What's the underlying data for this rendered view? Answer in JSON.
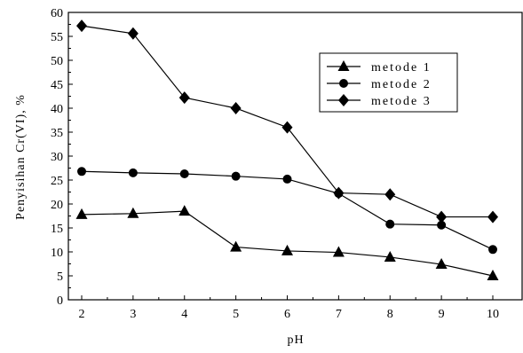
{
  "chart_data": {
    "type": "line",
    "title": "",
    "xlabel": "pH",
    "ylabel": "Penyisihan Cr(VI), %",
    "x": [
      2,
      3,
      4,
      5,
      6,
      7,
      8,
      9,
      10
    ],
    "xlim": [
      2,
      10
    ],
    "ylim": [
      0,
      60
    ],
    "xticks": [
      "2",
      "3",
      "4",
      "5",
      "6",
      "7",
      "8",
      "9",
      "10"
    ],
    "yticks": [
      "0",
      "5",
      "10",
      "15",
      "20",
      "25",
      "30",
      "35",
      "40",
      "45",
      "50",
      "55",
      "60"
    ],
    "grid": false,
    "legend_position": "top-right",
    "series": [
      {
        "name": "metode 1",
        "marker": "triangle",
        "values": [
          17.8,
          18.0,
          18.5,
          11.0,
          10.2,
          9.9,
          8.9,
          7.4,
          5.0
        ]
      },
      {
        "name": "metode 2",
        "marker": "circle",
        "values": [
          26.8,
          26.5,
          26.3,
          25.8,
          25.2,
          22.2,
          15.8,
          15.6,
          10.5
        ]
      },
      {
        "name": "metode 3",
        "marker": "diamond",
        "values": [
          57.2,
          55.6,
          42.2,
          40.0,
          36.0,
          22.3,
          22.0,
          17.3,
          17.3
        ]
      }
    ],
    "colors": {
      "line": "#000000",
      "marker": "#000000"
    }
  }
}
